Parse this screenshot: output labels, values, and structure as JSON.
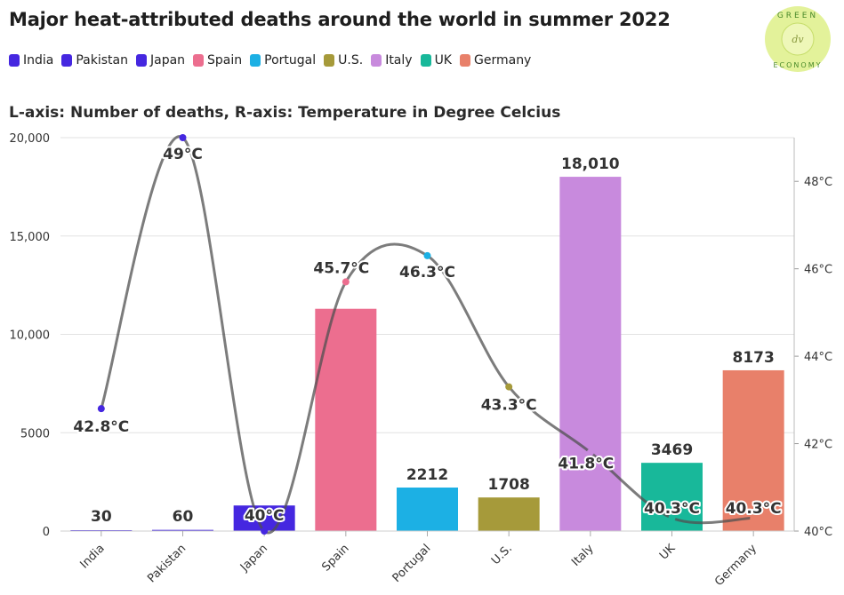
{
  "title": "Major heat-attributed deaths around the world in summer 2022",
  "subtitle": "L-axis: Number of deaths, R-axis: Temperature in Degree Celcius",
  "logo": {
    "top_text": "GREEN",
    "bottom_text": "ECONOMY",
    "center_text": "dv"
  },
  "legend": [
    {
      "label": "India",
      "color": "#4527e0"
    },
    {
      "label": "Pakistan",
      "color": "#4527e0"
    },
    {
      "label": "Japan",
      "color": "#4527e0"
    },
    {
      "label": "Spain",
      "color": "#ec6e8f"
    },
    {
      "label": "Portugal",
      "color": "#1cb0e4"
    },
    {
      "label": "U.S.",
      "color": "#a69a3a"
    },
    {
      "label": "Italy",
      "color": "#c88add"
    },
    {
      "label": "UK",
      "color": "#18b89a"
    },
    {
      "label": "Germany",
      "color": "#e8806a"
    }
  ],
  "chart_data": {
    "type": "bar",
    "categories": [
      "India",
      "Pakistan",
      "Japan",
      "Spain",
      "Portugal",
      "U.S.",
      "Italy",
      "UK",
      "Germany"
    ],
    "values": [
      30,
      60,
      1300,
      11300,
      2212,
      1708,
      18010,
      3469,
      8173
    ],
    "value_labels": [
      "30",
      "60",
      "",
      "",
      "2212",
      "1708",
      "18,010",
      "3469",
      "8173"
    ],
    "colors": [
      "#4527e0",
      "#4527e0",
      "#4527e0",
      "#ec6e8f",
      "#1cb0e4",
      "#a69a3a",
      "#c88add",
      "#18b89a",
      "#e8806a"
    ],
    "ylim": [
      0,
      20000
    ],
    "yticks": [
      0,
      5000,
      10000,
      15000,
      20000
    ],
    "ytick_labels": [
      "0",
      "5000",
      "10,000",
      "15,000",
      "20,000"
    ],
    "temperature": {
      "values": [
        42.8,
        49,
        40,
        45.7,
        46.3,
        43.3,
        41.8,
        40.3,
        40.3
      ],
      "labels": [
        "42.8°C",
        "49°C",
        "40°C",
        "45.7°C",
        "46.3°C",
        "43.3°C",
        "41.8°C",
        "40.3°C",
        "40.3°C"
      ],
      "ylim": [
        40,
        49
      ],
      "yticks": [
        40,
        42,
        44,
        46,
        48
      ],
      "ytick_labels": [
        "40°C",
        "42°C",
        "44°C",
        "46°C",
        "48°C"
      ]
    },
    "grid": true
  }
}
